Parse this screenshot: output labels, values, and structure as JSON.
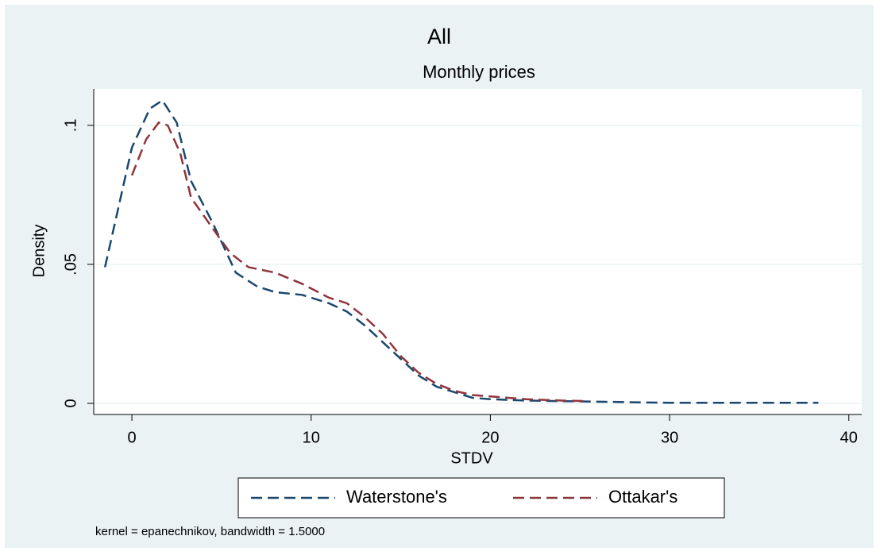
{
  "chart_data": {
    "type": "line",
    "title": "All",
    "subtitle": "Monthly prices",
    "x_label": "STDV",
    "y_label": "Density",
    "note": "kernel = epanechnikov, bandwidth = 1.5000",
    "xlim": [
      -2.13,
      40.72
    ],
    "ylim": [
      -0.004,
      0.1131
    ],
    "xticks": [
      0,
      10,
      20,
      30,
      40
    ],
    "yticks": [
      0,
      {
        "value": 0.05,
        "label": ".05"
      },
      {
        "value": 0.1,
        "label": ".1"
      }
    ],
    "grid": true,
    "legend": "bottom",
    "series": [
      {
        "name": "Waterstone's",
        "color": "#1a476f",
        "x": [
          -1.5,
          0,
          1,
          1.7,
          2.5,
          3.3,
          4.5,
          5.8,
          7,
          8,
          9.5,
          11,
          12,
          13,
          14,
          15,
          16,
          17,
          18,
          19,
          20,
          22,
          25,
          28,
          30,
          33,
          38.3
        ],
        "values": [
          0.049,
          0.092,
          0.106,
          0.109,
          0.101,
          0.08,
          0.065,
          0.047,
          0.042,
          0.04,
          0.039,
          0.036,
          0.033,
          0.028,
          0.022,
          0.016,
          0.01,
          0.006,
          0.004,
          0.002,
          0.0015,
          0.001,
          0.0007,
          0.0004,
          0.0002,
          0.0002,
          0.0002
        ]
      },
      {
        "name": "Ottakar's",
        "color": "#90353b",
        "x": [
          0,
          0.8,
          1.5,
          2,
          2.7,
          3.3,
          4.5,
          5.5,
          6.5,
          8,
          9.5,
          11,
          12,
          13,
          14,
          15,
          16,
          17,
          18,
          19,
          20,
          22,
          24,
          25.5
        ],
        "values": [
          0.082,
          0.095,
          0.101,
          0.1,
          0.09,
          0.074,
          0.063,
          0.054,
          0.049,
          0.047,
          0.043,
          0.038,
          0.036,
          0.031,
          0.025,
          0.017,
          0.011,
          0.007,
          0.0045,
          0.003,
          0.0025,
          0.0015,
          0.001,
          0.0008
        ]
      }
    ]
  }
}
